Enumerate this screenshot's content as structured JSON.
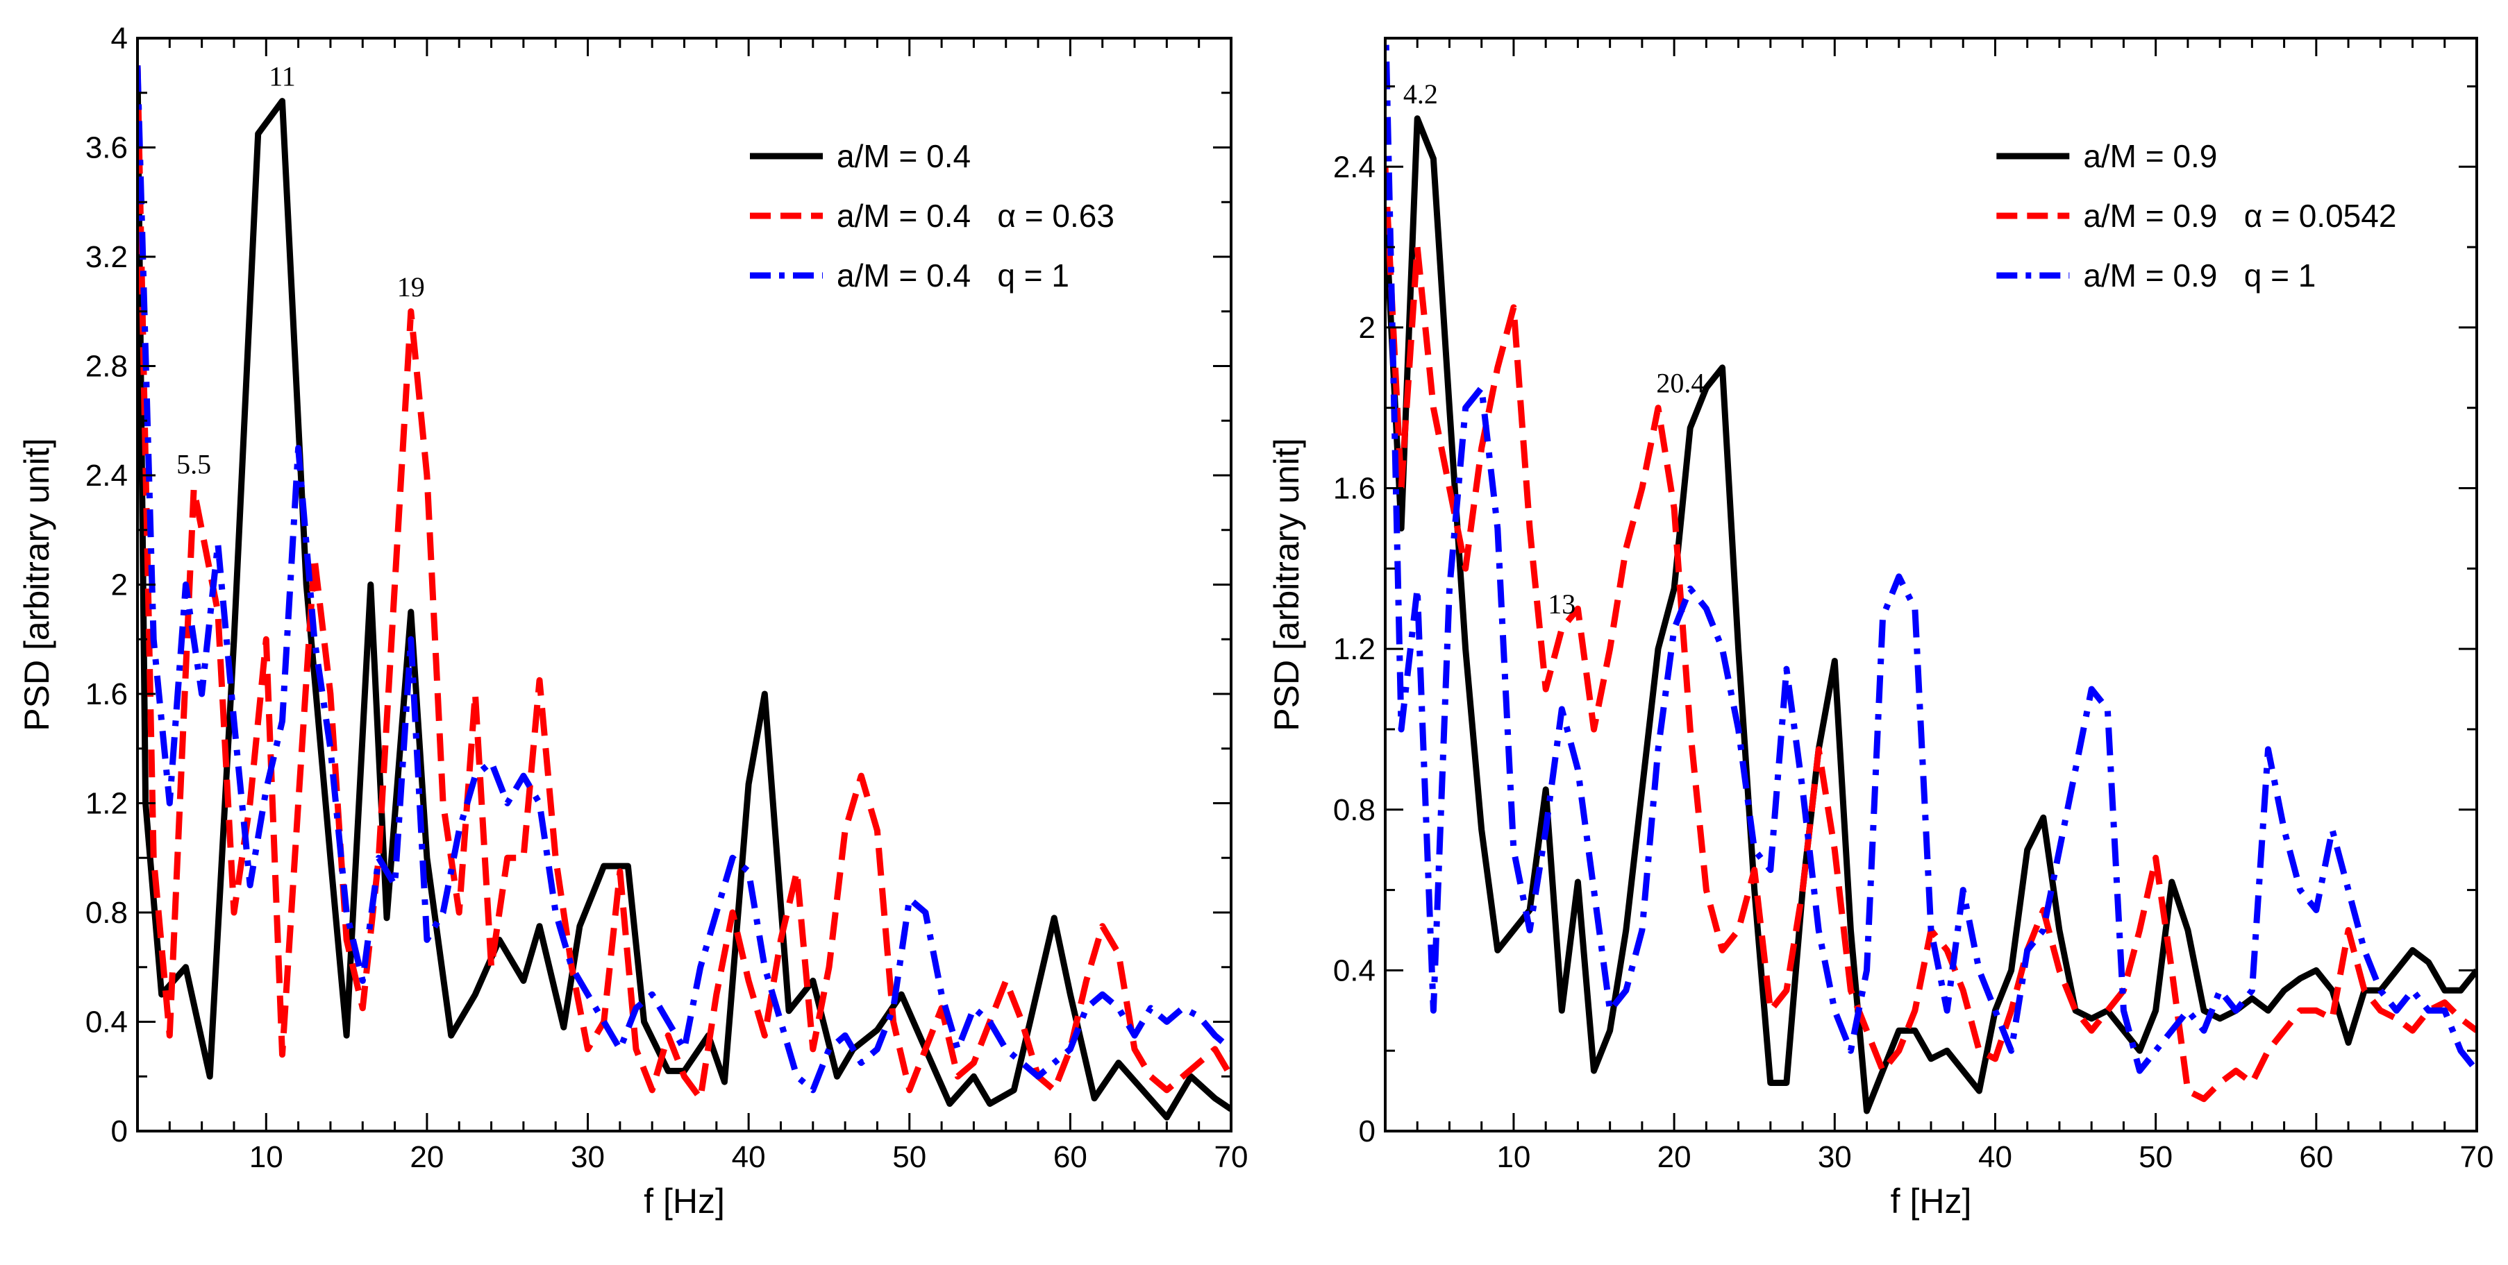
{
  "chart_data": [
    {
      "type": "line",
      "xlabel": "f [Hz]",
      "ylabel": "PSD [arbitrary unit]",
      "xlim": [
        2,
        70
      ],
      "ylim": [
        0,
        4
      ],
      "xticks": [
        10,
        20,
        30,
        40,
        50,
        60,
        70
      ],
      "yticks": [
        0,
        0.4,
        0.8,
        1.2,
        1.6,
        2,
        2.4,
        2.8,
        3.2,
        3.6,
        4
      ],
      "legend_position": "top-right",
      "series": [
        {
          "name": "a/M = 0.4",
          "color": "#000000",
          "dash": "solid",
          "x": [
            2,
            2.5,
            3.5,
            5,
            6.5,
            8,
            9.5,
            11,
            12.5,
            14,
            15,
            16.5,
            17.5,
            19,
            20,
            21.5,
            23,
            24.5,
            26,
            27,
            28.5,
            29.5,
            31,
            32.5,
            33.5,
            35,
            36,
            37.5,
            38.5,
            40,
            41,
            42.5,
            44,
            45.5,
            46.5,
            48,
            49.5,
            51,
            52.5,
            54,
            55,
            56.5,
            57.5,
            59,
            60,
            61.5,
            63,
            64.5,
            66,
            67.5,
            69,
            70
          ],
          "y": [
            3.9,
            1.2,
            0.5,
            0.6,
            0.2,
            1.8,
            3.65,
            3.77,
            2.0,
            1.0,
            0.35,
            2.0,
            0.78,
            1.9,
            1.0,
            0.35,
            0.5,
            0.7,
            0.55,
            0.75,
            0.38,
            0.75,
            0.97,
            0.97,
            0.4,
            0.22,
            0.22,
            0.35,
            0.18,
            1.27,
            1.6,
            0.44,
            0.55,
            0.2,
            0.3,
            0.37,
            0.5,
            0.3,
            0.1,
            0.2,
            0.1,
            0.15,
            0.4,
            0.78,
            0.5,
            0.12,
            0.25,
            0.15,
            0.05,
            0.2,
            0.12,
            0.08
          ]
        },
        {
          "name": "a/M = 0.4   α = 0.63",
          "color": "#ff0000",
          "dash": "dashed",
          "x": [
            2,
            3,
            4,
            5.5,
            7,
            8,
            9,
            10,
            11,
            12,
            13,
            14,
            15,
            16,
            17,
            18,
            19,
            20,
            21,
            22,
            23,
            24,
            25,
            26,
            27,
            28,
            29,
            30,
            31,
            32,
            33,
            34,
            35,
            36,
            37,
            38,
            39,
            40,
            41,
            42,
            43,
            44,
            45,
            46,
            47,
            48,
            49,
            50,
            51,
            52,
            53,
            54,
            55,
            56,
            57,
            58,
            59,
            60,
            61,
            62,
            63,
            64,
            65,
            66,
            67,
            68,
            69,
            70
          ],
          "y": [
            3.9,
            1.0,
            0.35,
            2.35,
            1.9,
            0.8,
            1.2,
            1.8,
            0.28,
            1.2,
            2.1,
            1.6,
            0.7,
            0.45,
            1.0,
            2.0,
            3.0,
            2.4,
            1.2,
            0.8,
            1.6,
            0.6,
            1.0,
            1.0,
            1.65,
            1.0,
            0.6,
            0.3,
            0.4,
            0.95,
            0.3,
            0.15,
            0.35,
            0.2,
            0.12,
            0.5,
            0.8,
            0.55,
            0.35,
            0.7,
            0.95,
            0.3,
            0.6,
            1.1,
            1.3,
            1.1,
            0.4,
            0.15,
            0.3,
            0.45,
            0.2,
            0.25,
            0.4,
            0.55,
            0.4,
            0.2,
            0.15,
            0.3,
            0.55,
            0.75,
            0.65,
            0.3,
            0.2,
            0.15,
            0.2,
            0.25,
            0.3,
            0.2
          ]
        },
        {
          "name": "a/M = 0.4   q = 1",
          "color": "#0000ff",
          "dash": "dashdot",
          "x": [
            2,
            3,
            4,
            5,
            6,
            7,
            8,
            9,
            10,
            11,
            12,
            13,
            14,
            15,
            16,
            17,
            18,
            19,
            20,
            21,
            22,
            23,
            24,
            25,
            26,
            27,
            28,
            29,
            30,
            31,
            32,
            33,
            34,
            35,
            36,
            37,
            38,
            39,
            40,
            41,
            42,
            43,
            44,
            45,
            46,
            47,
            48,
            49,
            50,
            51,
            52,
            53,
            54,
            55,
            56,
            57,
            58,
            59,
            60,
            61,
            62,
            63,
            64,
            65,
            66,
            67,
            68,
            69,
            70
          ],
          "y": [
            3.9,
            1.8,
            1.2,
            2.0,
            1.6,
            2.15,
            1.5,
            0.9,
            1.25,
            1.5,
            2.5,
            1.8,
            1.4,
            0.8,
            0.55,
            1.0,
            0.9,
            1.8,
            0.7,
            0.8,
            1.1,
            1.3,
            1.35,
            1.2,
            1.3,
            1.2,
            0.8,
            0.6,
            0.5,
            0.4,
            0.3,
            0.45,
            0.5,
            0.4,
            0.3,
            0.6,
            0.8,
            1.0,
            0.95,
            0.6,
            0.4,
            0.2,
            0.15,
            0.3,
            0.35,
            0.25,
            0.3,
            0.45,
            0.85,
            0.8,
            0.5,
            0.3,
            0.45,
            0.4,
            0.3,
            0.25,
            0.2,
            0.25,
            0.3,
            0.45,
            0.5,
            0.45,
            0.35,
            0.45,
            0.4,
            0.45,
            0.42,
            0.35,
            0.3
          ]
        }
      ],
      "annotations": [
        {
          "text": "5.5",
          "x": 5.5,
          "y": 2.35
        },
        {
          "text": "11",
          "x": 11,
          "y": 3.77
        },
        {
          "text": "19",
          "x": 19,
          "y": 3.0
        }
      ]
    },
    {
      "type": "line",
      "xlabel": "f [Hz]",
      "ylabel": "PSD [arbitrary unit]",
      "xlim": [
        2,
        70
      ],
      "ylim": [
        0,
        2.72
      ],
      "xticks": [
        10,
        20,
        30,
        40,
        50,
        60,
        70
      ],
      "yticks": [
        0,
        0.4,
        0.8,
        1.2,
        1.6,
        2,
        2.4
      ],
      "legend_position": "top-right",
      "series": [
        {
          "name": "a/M = 0.9",
          "color": "#000000",
          "dash": "solid",
          "x": [
            2,
            3,
            4,
            5,
            6,
            7,
            8,
            9,
            10,
            11,
            12,
            13,
            14,
            15,
            16,
            17,
            18,
            19,
            20,
            21,
            22,
            23,
            24,
            25,
            26,
            27,
            28,
            29,
            30,
            31,
            32,
            33,
            34,
            35,
            36,
            37,
            38,
            39,
            40,
            41,
            42,
            43,
            44,
            45,
            46,
            47,
            48,
            49,
            50,
            51,
            52,
            53,
            54,
            55,
            56,
            57,
            58,
            59,
            60,
            61,
            62,
            63,
            64,
            65,
            66,
            67,
            68,
            69,
            70
          ],
          "y": [
            2.3,
            1.5,
            2.52,
            2.42,
            1.8,
            1.2,
            0.75,
            0.45,
            0.5,
            0.55,
            0.85,
            0.3,
            0.62,
            0.15,
            0.25,
            0.5,
            0.85,
            1.2,
            1.35,
            1.75,
            1.85,
            1.9,
            1.2,
            0.6,
            0.12,
            0.12,
            0.6,
            0.95,
            1.17,
            0.5,
            0.05,
            0.15,
            0.25,
            0.25,
            0.18,
            0.2,
            0.15,
            0.1,
            0.3,
            0.4,
            0.7,
            0.78,
            0.5,
            0.3,
            0.28,
            0.3,
            0.25,
            0.2,
            0.3,
            0.62,
            0.5,
            0.3,
            0.28,
            0.3,
            0.33,
            0.3,
            0.35,
            0.38,
            0.4,
            0.35,
            0.22,
            0.35,
            0.35,
            0.4,
            0.45,
            0.42,
            0.35,
            0.35,
            0.4
          ]
        },
        {
          "name": "a/M = 0.9   α = 0.0542",
          "color": "#ff0000",
          "dash": "dashed",
          "x": [
            2,
            3,
            4,
            5,
            6,
            7,
            8,
            9,
            10,
            11,
            12,
            13,
            14,
            15,
            16,
            17,
            18,
            19,
            20,
            21,
            22,
            23,
            24,
            25,
            26,
            27,
            28,
            29,
            30,
            31,
            32,
            33,
            34,
            35,
            36,
            37,
            38,
            39,
            40,
            41,
            42,
            43,
            44,
            45,
            46,
            47,
            48,
            49,
            50,
            51,
            52,
            53,
            54,
            55,
            56,
            57,
            58,
            59,
            60,
            61,
            62,
            63,
            64,
            65,
            66,
            67,
            68,
            69,
            70
          ],
          "y": [
            2.4,
            1.6,
            2.2,
            1.8,
            1.6,
            1.4,
            1.7,
            1.9,
            2.05,
            1.5,
            1.1,
            1.25,
            1.3,
            1.0,
            1.2,
            1.45,
            1.6,
            1.8,
            1.55,
            1.0,
            0.6,
            0.45,
            0.5,
            0.65,
            0.3,
            0.35,
            0.6,
            0.95,
            0.7,
            0.35,
            0.25,
            0.15,
            0.2,
            0.3,
            0.5,
            0.45,
            0.35,
            0.2,
            0.18,
            0.3,
            0.45,
            0.55,
            0.4,
            0.3,
            0.25,
            0.3,
            0.35,
            0.5,
            0.68,
            0.4,
            0.1,
            0.08,
            0.12,
            0.15,
            0.12,
            0.2,
            0.25,
            0.3,
            0.3,
            0.28,
            0.5,
            0.35,
            0.3,
            0.28,
            0.25,
            0.3,
            0.32,
            0.28,
            0.25
          ]
        },
        {
          "name": "a/M = 0.9   q = 1",
          "color": "#0000ff",
          "dash": "dashdot",
          "x": [
            2,
            3,
            4,
            5,
            6,
            7,
            8,
            9,
            10,
            11,
            12,
            13,
            14,
            15,
            16,
            17,
            18,
            19,
            20,
            21,
            22,
            23,
            24,
            25,
            26,
            27,
            28,
            29,
            30,
            31,
            32,
            33,
            34,
            35,
            36,
            37,
            38,
            39,
            40,
            41,
            42,
            43,
            44,
            45,
            46,
            47,
            48,
            49,
            50,
            51,
            52,
            53,
            54,
            55,
            56,
            57,
            58,
            59,
            60,
            61,
            62,
            63,
            64,
            65,
            66,
            67,
            68,
            69,
            70
          ],
          "y": [
            2.8,
            1.0,
            1.35,
            0.3,
            1.35,
            1.8,
            1.85,
            1.5,
            0.7,
            0.5,
            0.75,
            1.05,
            0.9,
            0.6,
            0.3,
            0.35,
            0.5,
            0.95,
            1.25,
            1.35,
            1.3,
            1.2,
            1.0,
            0.7,
            0.65,
            1.15,
            0.85,
            0.5,
            0.3,
            0.2,
            0.4,
            1.28,
            1.38,
            1.3,
            0.5,
            0.3,
            0.6,
            0.4,
            0.3,
            0.2,
            0.45,
            0.5,
            0.7,
            0.9,
            1.1,
            1.05,
            0.3,
            0.15,
            0.2,
            0.25,
            0.3,
            0.25,
            0.35,
            0.3,
            0.35,
            0.95,
            0.75,
            0.6,
            0.55,
            0.75,
            0.6,
            0.45,
            0.35,
            0.3,
            0.35,
            0.3,
            0.3,
            0.2,
            0.15
          ]
        }
      ],
      "annotations": [
        {
          "text": "4.2",
          "x": 4.2,
          "y": 2.52
        },
        {
          "text": "13",
          "x": 13,
          "y": 1.25
        },
        {
          "text": "20.4",
          "x": 20.4,
          "y": 1.8
        }
      ]
    }
  ]
}
